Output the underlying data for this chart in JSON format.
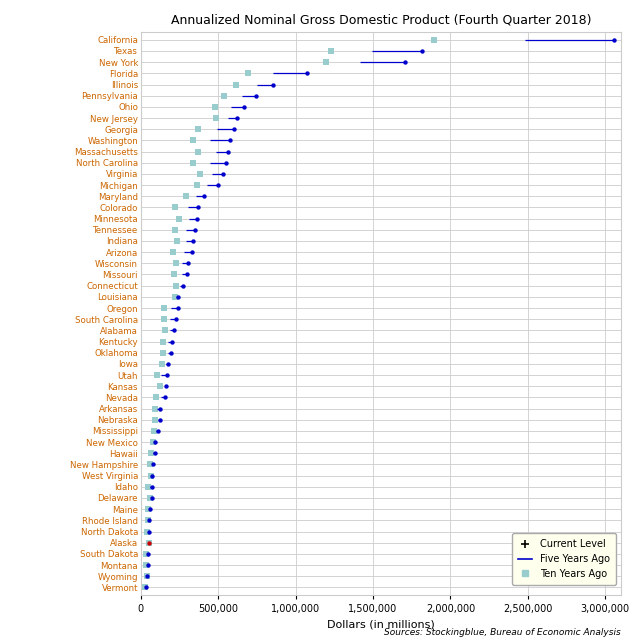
{
  "title": "Annualized Nominal Gross Domestic Product (Fourth Quarter 2018)",
  "xlabel": "Dollars (in millions)",
  "source": "Sources: Stockingblue, Bureau of Economic Analysis",
  "states": [
    "California",
    "Texas",
    "New York",
    "Florida",
    "Illinois",
    "Pennsylvania",
    "Ohio",
    "New Jersey",
    "Georgia",
    "Washington",
    "Massachusetts",
    "North Carolina",
    "Virginia",
    "Michigan",
    "Maryland",
    "Colorado",
    "Minnesota",
    "Tennessee",
    "Indiana",
    "Arizona",
    "Wisconsin",
    "Missouri",
    "Connecticut",
    "Louisiana",
    "Oregon",
    "South Carolina",
    "Alabama",
    "Kentucky",
    "Oklahoma",
    "Iowa",
    "Utah",
    "Kansas",
    "Nevada",
    "Arkansas",
    "Nebraska",
    "Mississippi",
    "New Mexico",
    "Hawaii",
    "New Hampshire",
    "West Virginia",
    "Idaho",
    "Delaware",
    "Maine",
    "Rhode Island",
    "North Dakota",
    "Alaska",
    "South Dakota",
    "Montana",
    "Wyoming",
    "Vermont"
  ],
  "current": [
    3057287,
    1816468,
    1703280,
    1072382,
    856317,
    741187,
    665164,
    621547,
    602613,
    576042,
    566215,
    547822,
    530468,
    500267,
    404987,
    370703,
    363127,
    346827,
    340095,
    330823,
    305704,
    296956,
    272428,
    241813,
    237516,
    228175,
    211716,
    202462,
    197748,
    177984,
    168750,
    165497,
    159093,
    123497,
    120948,
    111832,
    93665,
    88832,
    81734,
    74541,
    74237,
    73009,
    59453,
    55692,
    54282,
    51676,
    49484,
    47628,
    38366,
    32856
  ],
  "five_years": [
    2480668,
    1490254,
    1416960,
    853220,
    749178,
    651016,
    583220,
    565290,
    490060,
    446220,
    482550,
    448028,
    457810,
    425488,
    358048,
    306320,
    310850,
    294060,
    293370,
    281820,
    268640,
    265680,
    252800,
    229210,
    192430,
    191540,
    186340,
    176800,
    173860,
    162030,
    129440,
    154010,
    127450,
    107300,
    113400,
    97460,
    91810,
    77050,
    72350,
    68960,
    57030,
    68020,
    53770,
    51510,
    52820,
    52590,
    42980,
    41520,
    39140,
    29080
  ],
  "ten_years": [
    1894432,
    1231110,
    1193020,
    691480,
    611950,
    540300,
    476570,
    487310,
    369990,
    338460,
    367890,
    339950,
    381570,
    362470,
    289300,
    218460,
    248650,
    222760,
    235370,
    210380,
    225120,
    213510,
    226150,
    220670,
    152170,
    147090,
    155200,
    143680,
    145630,
    138090,
    105340,
    126410,
    97370,
    93230,
    89870,
    88100,
    76250,
    67210,
    58970,
    64610,
    43480,
    62500,
    44580,
    47680,
    40650,
    52810,
    36570,
    33760,
    38510,
    25320
  ],
  "state_label_color": "#CC6600",
  "current_color": "#0000CC",
  "line_color": "#0000CC",
  "ten_year_color": "#99CCCC",
  "alaska_color": "#CC0000",
  "legend_bg": "#FFFFEE",
  "background_color": "#FFFFFF",
  "grid_color": "#CCCCCC",
  "axis_range": [
    0,
    3100000
  ],
  "xtick_values": [
    0,
    500000,
    1000000,
    1500000,
    2000000,
    2500000,
    3000000
  ],
  "xtick_labels": [
    "0",
    "500,000",
    "1,000,000",
    "1,500,000",
    "2,000,000",
    "2,500,000",
    "3,000,000"
  ]
}
